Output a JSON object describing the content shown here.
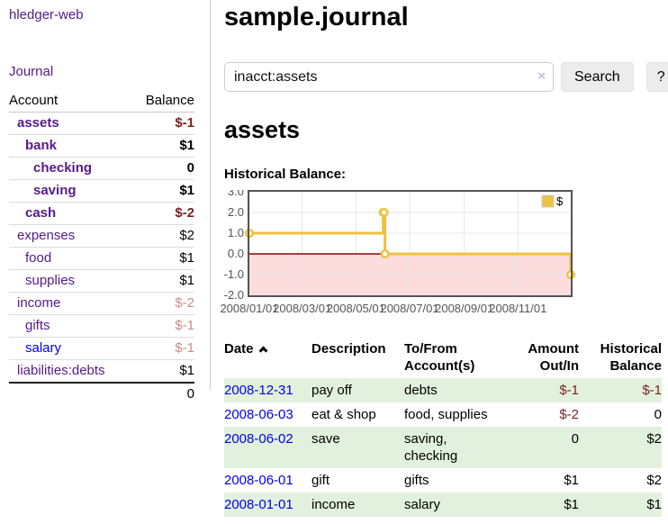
{
  "sidebar": {
    "app_title": "hledger-web",
    "journal_link": "Journal",
    "accounts_table": {
      "headers": [
        "Account",
        "Balance"
      ],
      "rows": [
        {
          "name": "assets",
          "balance": "$-1",
          "depth": 1,
          "matched": true
        },
        {
          "name": "bank",
          "balance": "$1",
          "depth": 2,
          "matched": true
        },
        {
          "name": "checking",
          "balance": "0",
          "depth": 3,
          "matched": true
        },
        {
          "name": "saving",
          "balance": "$1",
          "depth": 3,
          "matched": true
        },
        {
          "name": "cash",
          "balance": "$-2",
          "depth": 2,
          "matched": true
        },
        {
          "name": "expenses",
          "balance": "$2",
          "depth": 1
        },
        {
          "name": "food",
          "balance": "$1",
          "depth": 2
        },
        {
          "name": "supplies",
          "balance": "$1",
          "depth": 2
        },
        {
          "name": "income",
          "balance": "$-2",
          "depth": 1,
          "faded_negative": true
        },
        {
          "name": "gifts",
          "balance": "$-1",
          "depth": 2,
          "faded_negative": true
        },
        {
          "name": "salary",
          "balance": "$-1",
          "depth": 2,
          "faded_negative": true,
          "unvisited": true
        },
        {
          "name": "liabilities:debts",
          "balance": "$1",
          "depth": 1
        }
      ],
      "total": "0"
    }
  },
  "main": {
    "title": "sample.journal",
    "search": {
      "value": "inacct:assets",
      "clear_icon": "×",
      "button_label": "Search",
      "help_label": "?"
    },
    "account_heading": "assets"
  },
  "chart_data": {
    "type": "line",
    "title": "Historical Balance:",
    "steps": true,
    "xlim": [
      "2008-01-01",
      "2008-12-31"
    ],
    "ylim": [
      -2,
      3
    ],
    "x_ticks": [
      {
        "label": "2008/01/01",
        "date": "2008-01-01"
      },
      {
        "label": "2008/03/01",
        "date": "2008-03-01"
      },
      {
        "label": "2008/05/01",
        "date": "2008-05-01"
      },
      {
        "label": "2008/07/01",
        "date": "2008-07-01"
      },
      {
        "label": "2008/09/01",
        "date": "2008-09-01"
      },
      {
        "label": "2008/11/01",
        "date": "2008-11-01"
      }
    ],
    "y_ticks": [
      {
        "label": "3.0",
        "value": 3
      },
      {
        "label": "2.0",
        "value": 2
      },
      {
        "label": "1.0",
        "value": 1
      },
      {
        "label": "0.0",
        "value": 0
      },
      {
        "label": "-1.0",
        "value": -1
      },
      {
        "label": "-2.0",
        "value": -2
      }
    ],
    "series": [
      {
        "name": "$",
        "color": "#edc240",
        "points": [
          [
            "2008-01-01",
            1
          ],
          [
            "2008-06-01",
            2
          ],
          [
            "2008-06-02",
            2
          ],
          [
            "2008-06-03",
            0
          ],
          [
            "2008-12-31",
            -1
          ]
        ]
      }
    ],
    "legend_position": "top-right",
    "colors": {
      "grid": "#e6e6e6",
      "border": "#545454",
      "tick_label": "#545454",
      "negative_region": "#fcdcdc",
      "zero_line": "#8b0000",
      "point_fill": "#ffffff"
    }
  },
  "register": {
    "columns": [
      "Date",
      "Description",
      "To/From\nAccount(s)",
      "Amount\nOut/In",
      "Historical\nBalance"
    ],
    "rows": [
      {
        "date": "2008-12-31",
        "description": "pay off",
        "accounts": "debts",
        "amount": "$-1",
        "balance": "$-1"
      },
      {
        "date": "2008-06-03",
        "description": "eat & shop",
        "accounts": "food, supplies",
        "amount": "$-2",
        "balance": "0"
      },
      {
        "date": "2008-06-02",
        "description": "save",
        "accounts": "saving, checking",
        "amount": "0",
        "balance": "$2"
      },
      {
        "date": "2008-06-01",
        "description": "gift",
        "accounts": "gifts",
        "amount": "$1",
        "balance": "$2"
      },
      {
        "date": "2008-01-01",
        "description": "income",
        "accounts": "salary",
        "amount": "$1",
        "balance": "$1"
      }
    ]
  },
  "colors": {
    "link_visited": "#551a8b",
    "link_unvisited": "#0000ee",
    "negative_strong": "#7d1f1f",
    "negative_faded": "#c98c8c",
    "row_stripe_green": "#e2f1dd",
    "series_gold": "#edc240"
  }
}
